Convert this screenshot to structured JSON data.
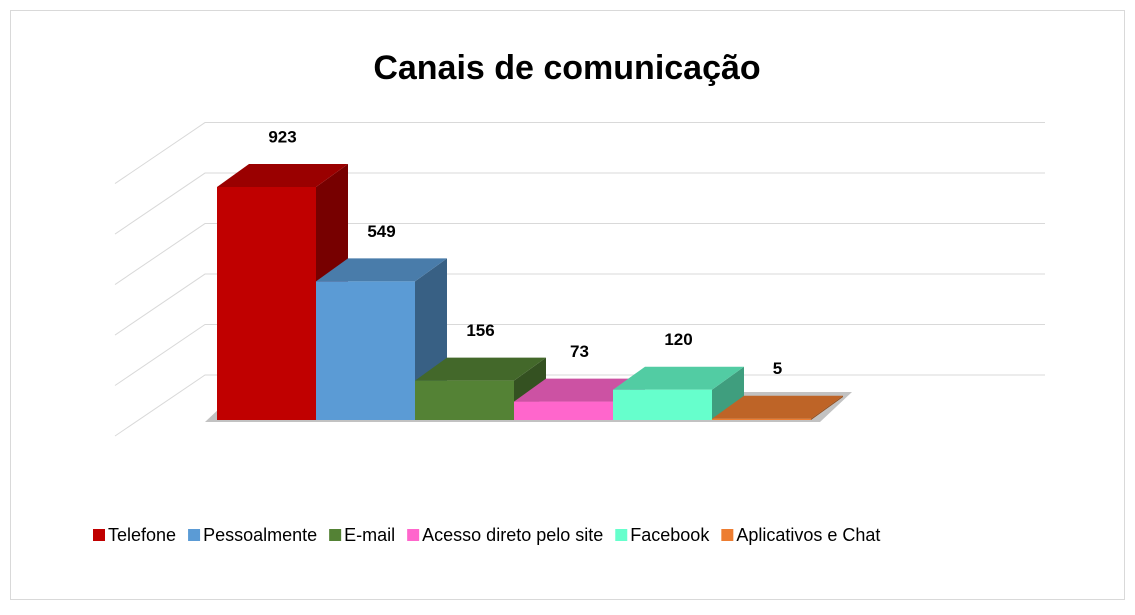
{
  "chart_data": {
    "type": "bar3d",
    "title": "Canais de comunicação",
    "categories": [
      "Telefone",
      "Pessoalmente",
      "E-mail",
      "Acesso direto pelo site",
      "Facebook",
      "Aplicativos e Chat"
    ],
    "values": [
      923,
      549,
      156,
      73,
      120,
      5
    ],
    "colors": [
      "#c00000",
      "#5b9bd5",
      "#548235",
      "#ff66cc",
      "#66ffcc",
      "#ed7d31"
    ],
    "ylim": [
      0,
      1000
    ],
    "yticks": [
      0,
      200,
      400,
      600,
      800,
      1000
    ],
    "grid": true,
    "legend": "bottom"
  }
}
